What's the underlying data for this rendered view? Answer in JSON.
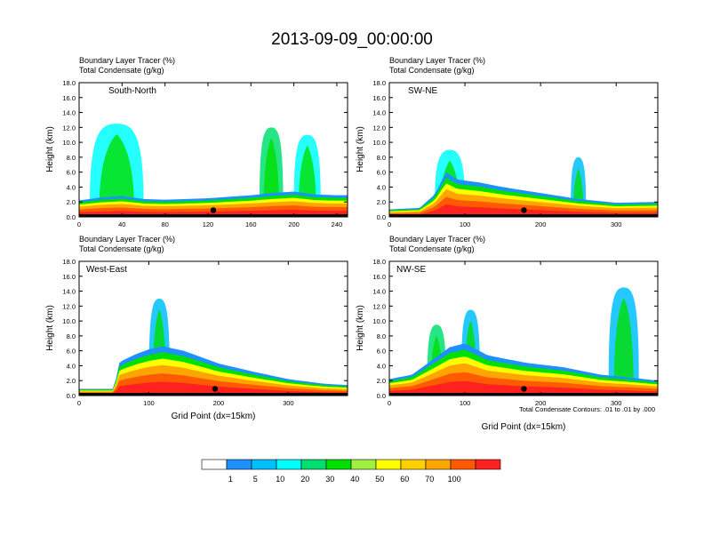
{
  "figure": {
    "title": "2013-09-09_00:00:00",
    "colorbar": {
      "levels": [
        "1",
        "5",
        "10",
        "20",
        "30",
        "40",
        "50",
        "60",
        "70",
        "100"
      ],
      "colors": [
        "#ffffff",
        "#1e90ff",
        "#00bfff",
        "#00ffff",
        "#00e070",
        "#00e000",
        "#a0f040",
        "#ffff00",
        "#ffd000",
        "#ffa500",
        "#ff5a00",
        "#ff2020"
      ]
    },
    "contour_info": "Total Condensate Contours: .01 to .01 by .000"
  },
  "chart_data": [
    {
      "type": "heatmap",
      "panel": "south-north",
      "label": "South-North",
      "legend_line1": "Boundary Layer Tracer   (%)",
      "legend_line2": "Total Condensate   (g/kg)",
      "ylabel": "Height (km)",
      "xlabel": "",
      "xlim": [
        0,
        250
      ],
      "xticks": [
        "0",
        "40",
        "80",
        "120",
        "160",
        "200",
        "240"
      ],
      "xtick_values": [
        0,
        40,
        80,
        120,
        160,
        200,
        240
      ],
      "ylim": [
        0,
        18
      ],
      "yticks": [
        "0.0",
        "2.0",
        "4.0",
        "6.0",
        "8.0",
        "10.0",
        "12.0",
        "14.0",
        "16.0",
        "18.0"
      ],
      "boundary_layer_top_km": [
        [
          0,
          2.2
        ],
        [
          20,
          2.6
        ],
        [
          40,
          2.8
        ],
        [
          60,
          2.4
        ],
        [
          80,
          2.3
        ],
        [
          100,
          2.4
        ],
        [
          120,
          2.5
        ],
        [
          140,
          2.7
        ],
        [
          160,
          2.9
        ],
        [
          180,
          3.2
        ],
        [
          200,
          3.4
        ],
        [
          220,
          3.0
        ],
        [
          240,
          2.9
        ],
        [
          250,
          2.9
        ]
      ],
      "tracer_plumes": [
        {
          "x": [
            10,
            60
          ],
          "top_km": 12.5,
          "level": "10"
        },
        {
          "x": [
            168,
            190
          ],
          "top_km": 12.0,
          "level": "20"
        },
        {
          "x": [
            200,
            225
          ],
          "top_km": 11.0,
          "level": "10"
        }
      ],
      "marker_x": 125
    },
    {
      "type": "heatmap",
      "panel": "sw-ne",
      "label": "SW-NE",
      "legend_line1": "Boundary Layer Tracer   (%)",
      "legend_line2": "Total Condensate   (g/kg)",
      "ylabel": "Height (km)",
      "xlabel": "",
      "xlim": [
        0,
        355
      ],
      "xticks": [
        "0",
        "100",
        "200",
        "300"
      ],
      "xtick_values": [
        0,
        100,
        200,
        300
      ],
      "ylim": [
        0,
        18
      ],
      "yticks": [
        "0.0",
        "2.0",
        "4.0",
        "6.0",
        "8.0",
        "10.0",
        "12.0",
        "14.0",
        "16.0",
        "18.0"
      ],
      "boundary_layer_top_km": [
        [
          0,
          1.0
        ],
        [
          40,
          1.2
        ],
        [
          60,
          3.0
        ],
        [
          75,
          6.0
        ],
        [
          90,
          5.0
        ],
        [
          120,
          4.6
        ],
        [
          150,
          4.0
        ],
        [
          200,
          3.2
        ],
        [
          250,
          2.4
        ],
        [
          300,
          1.9
        ],
        [
          355,
          2.0
        ]
      ],
      "tracer_plumes": [
        {
          "x": [
            60,
            100
          ],
          "top_km": 9.0,
          "level": "10"
        },
        {
          "x": [
            240,
            260
          ],
          "top_km": 8.0,
          "level": "5"
        }
      ],
      "marker_x": 178
    },
    {
      "type": "heatmap",
      "panel": "west-east",
      "label": "West-East",
      "legend_line1": "Boundary Layer Tracer   (%)",
      "legend_line2": "Total Condensate   (g/kg)",
      "ylabel": "Height (km)",
      "xlabel": "Grid Point (dx=15km)",
      "xlim": [
        0,
        385
      ],
      "xticks": [
        "0",
        "100",
        "200",
        "300"
      ],
      "xtick_values": [
        0,
        100,
        200,
        300
      ],
      "ylim": [
        0,
        18
      ],
      "yticks": [
        "0.0",
        "2.0",
        "4.0",
        "6.0",
        "8.0",
        "10.0",
        "12.0",
        "14.0",
        "16.0",
        "18.0"
      ],
      "boundary_layer_top_km": [
        [
          0,
          0.9
        ],
        [
          50,
          0.9
        ],
        [
          58,
          4.5
        ],
        [
          80,
          5.5
        ],
        [
          100,
          6.2
        ],
        [
          120,
          6.6
        ],
        [
          150,
          6.0
        ],
        [
          200,
          4.3
        ],
        [
          250,
          3.2
        ],
        [
          300,
          2.2
        ],
        [
          350,
          1.6
        ],
        [
          385,
          1.4
        ]
      ],
      "tracer_plumes": [
        {
          "x": [
            100,
            130
          ],
          "top_km": 13.0,
          "level": "5"
        }
      ],
      "marker_x": 195
    },
    {
      "type": "heatmap",
      "panel": "nw-se",
      "label": "NW-SE",
      "legend_line1": "Boundary Layer Tracer   (%)",
      "legend_line2": "Total Condensate   (g/kg)",
      "ylabel": "Height (km)",
      "xlabel": "Grid Point (dx=15km)",
      "xlim": [
        0,
        355
      ],
      "xticks": [
        "0",
        "100",
        "200",
        "300"
      ],
      "xtick_values": [
        0,
        100,
        200,
        300
      ],
      "ylim": [
        0,
        18
      ],
      "yticks": [
        "0.0",
        "2.0",
        "4.0",
        "6.0",
        "8.0",
        "10.0",
        "12.0",
        "14.0",
        "16.0",
        "18.0"
      ],
      "boundary_layer_top_km": [
        [
          0,
          2.2
        ],
        [
          30,
          2.8
        ],
        [
          60,
          5.0
        ],
        [
          80,
          6.5
        ],
        [
          100,
          7.0
        ],
        [
          130,
          5.4
        ],
        [
          180,
          4.4
        ],
        [
          230,
          3.8
        ],
        [
          280,
          2.8
        ],
        [
          320,
          2.4
        ],
        [
          355,
          2.0
        ]
      ],
      "tracer_plumes": [
        {
          "x": [
            50,
            75
          ],
          "top_km": 9.5,
          "level": "20"
        },
        {
          "x": [
            95,
            120
          ],
          "top_km": 11.5,
          "level": "5"
        },
        {
          "x": [
            290,
            330
          ],
          "top_km": 14.5,
          "level": "5"
        }
      ],
      "marker_x": 178
    }
  ]
}
